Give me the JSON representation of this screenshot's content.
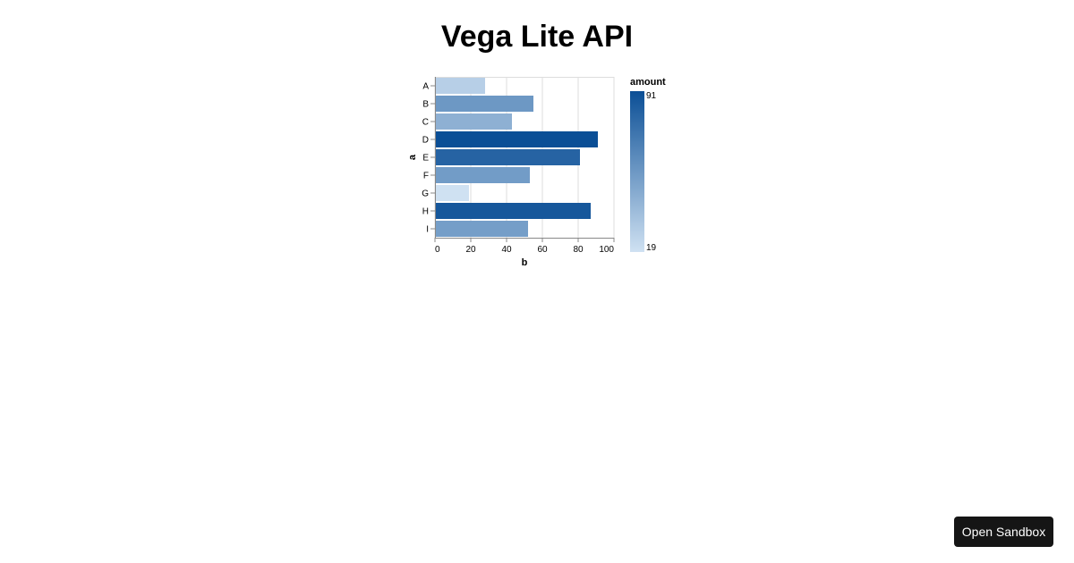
{
  "page": {
    "title": "Vega Lite API",
    "sandbox_label": "Open Sandbox"
  },
  "chart_data": {
    "type": "bar",
    "orientation": "horizontal",
    "categories": [
      "A",
      "B",
      "C",
      "D",
      "E",
      "F",
      "G",
      "H",
      "I"
    ],
    "values": [
      28,
      55,
      43,
      91,
      81,
      53,
      19,
      87,
      52
    ],
    "xlabel": "b",
    "ylabel": "a",
    "xlim": [
      0,
      100
    ],
    "xticks": [
      0,
      20,
      40,
      60,
      80,
      100
    ],
    "grid": true,
    "legend": {
      "title": "amount",
      "type": "gradient",
      "min": 19,
      "max": 91,
      "min_label": "19",
      "max_label": "91",
      "placement": "right",
      "color_low": "#cfe1f2",
      "color_high": "#0b4f96"
    }
  }
}
